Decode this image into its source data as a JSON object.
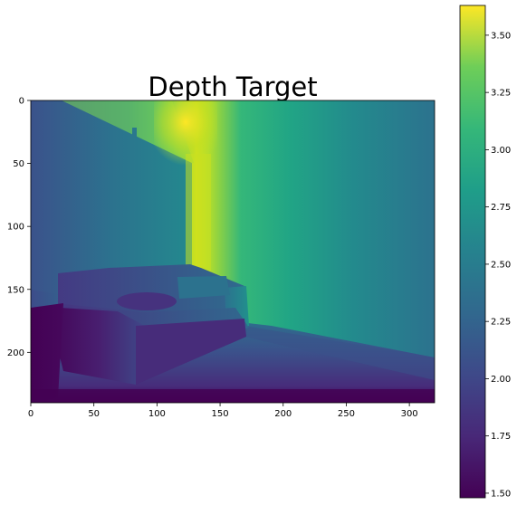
{
  "chart_data": {
    "type": "heatmap",
    "title": "Depth Target",
    "colormap": "viridis",
    "x_range": [
      0,
      320
    ],
    "y_range": [
      240,
      0
    ],
    "x_ticks": [
      "0",
      "50",
      "100",
      "150",
      "200",
      "250",
      "300"
    ],
    "y_ticks": [
      "0",
      "50",
      "100",
      "150",
      "200"
    ],
    "colorbar": {
      "range": [
        1.48,
        3.63
      ],
      "ticks": [
        "1.50",
        "1.75",
        "2.00",
        "2.25",
        "2.50",
        "2.75",
        "3.00",
        "3.25",
        "3.50"
      ]
    },
    "grid": false
  }
}
